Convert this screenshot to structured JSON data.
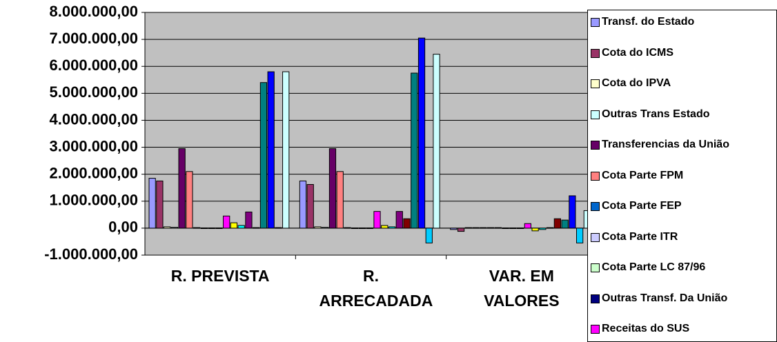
{
  "chart_data": {
    "type": "bar",
    "categories": [
      "R. PREVISTA",
      "R. ARRECADADA",
      "VAR. EM VALORES"
    ],
    "ylim": [
      -1000000,
      8000000
    ],
    "yticks": [
      {
        "value": -1000000,
        "label": "-1.000.000,00"
      },
      {
        "value": 0,
        "label": "0,00"
      },
      {
        "value": 1000000,
        "label": "1.000.000,00"
      },
      {
        "value": 2000000,
        "label": "2.000.000,00"
      },
      {
        "value": 3000000,
        "label": "3.000.000,00"
      },
      {
        "value": 4000000,
        "label": "4.000.000,00"
      },
      {
        "value": 5000000,
        "label": "5.000.000,00"
      },
      {
        "value": 6000000,
        "label": "6.000.000,00"
      },
      {
        "value": 7000000,
        "label": "7.000.000,00"
      },
      {
        "value": 8000000,
        "label": "8.000.000,00"
      }
    ],
    "grid": true,
    "series": [
      {
        "name": "Transf. do Estado",
        "color": "#9999ff",
        "values": [
          1850000,
          1750000,
          -50000
        ]
      },
      {
        "name": "Cota do ICMS",
        "color": "#993366",
        "values": [
          1750000,
          1620000,
          -120000
        ]
      },
      {
        "name": "Cota do IPVA",
        "color": "#ffffcc",
        "values": [
          50000,
          50000,
          20000
        ]
      },
      {
        "name": "Outras Trans Estado",
        "color": "#ccffff",
        "values": [
          30000,
          30000,
          20000
        ]
      },
      {
        "name": "Transferencias da União",
        "color": "#660066",
        "values": [
          2950000,
          2950000,
          20000
        ]
      },
      {
        "name": "Cota Parte FPM",
        "color": "#ff8080",
        "values": [
          2100000,
          2100000,
          20000
        ]
      },
      {
        "name": "Cota Parte FEP",
        "color": "#0066cc",
        "values": [
          20000,
          20000,
          20000
        ]
      },
      {
        "name": "Cota Parte ITR",
        "color": "#ccccff",
        "values": [
          10000,
          10000,
          10000
        ]
      },
      {
        "name": "Cota Parte LC 87/96",
        "color": "#ccffcc",
        "values": [
          10000,
          10000,
          10000
        ]
      },
      {
        "name": "Outras Transf. Da União",
        "color": "#000080",
        "values": [
          10000,
          10000,
          10000
        ]
      },
      {
        "name": "Receitas do SUS",
        "color": "#ff00ff",
        "values": [
          450000,
          620000,
          170000
        ]
      },
      {
        "name": null,
        "color": "#ffff00",
        "values": [
          200000,
          100000,
          -100000
        ]
      },
      {
        "name": null,
        "color": "#00ffff",
        "values": [
          100000,
          50000,
          -50000
        ]
      },
      {
        "name": null,
        "color": "#800080",
        "values": [
          600000,
          620000,
          20000
        ]
      },
      {
        "name": null,
        "color": "#800000",
        "values": [
          20000,
          350000,
          350000
        ]
      },
      {
        "name": null,
        "color": "#008080",
        "values": [
          5400000,
          5750000,
          300000
        ]
      },
      {
        "name": null,
        "color": "#0000ff",
        "values": [
          5800000,
          7050000,
          1200000
        ]
      },
      {
        "name": null,
        "color": "#00ccff",
        "values": [
          20000,
          -550000,
          -550000
        ]
      },
      {
        "name": null,
        "color": "#ccffff",
        "values": [
          5800000,
          6450000,
          650000
        ]
      }
    ]
  }
}
